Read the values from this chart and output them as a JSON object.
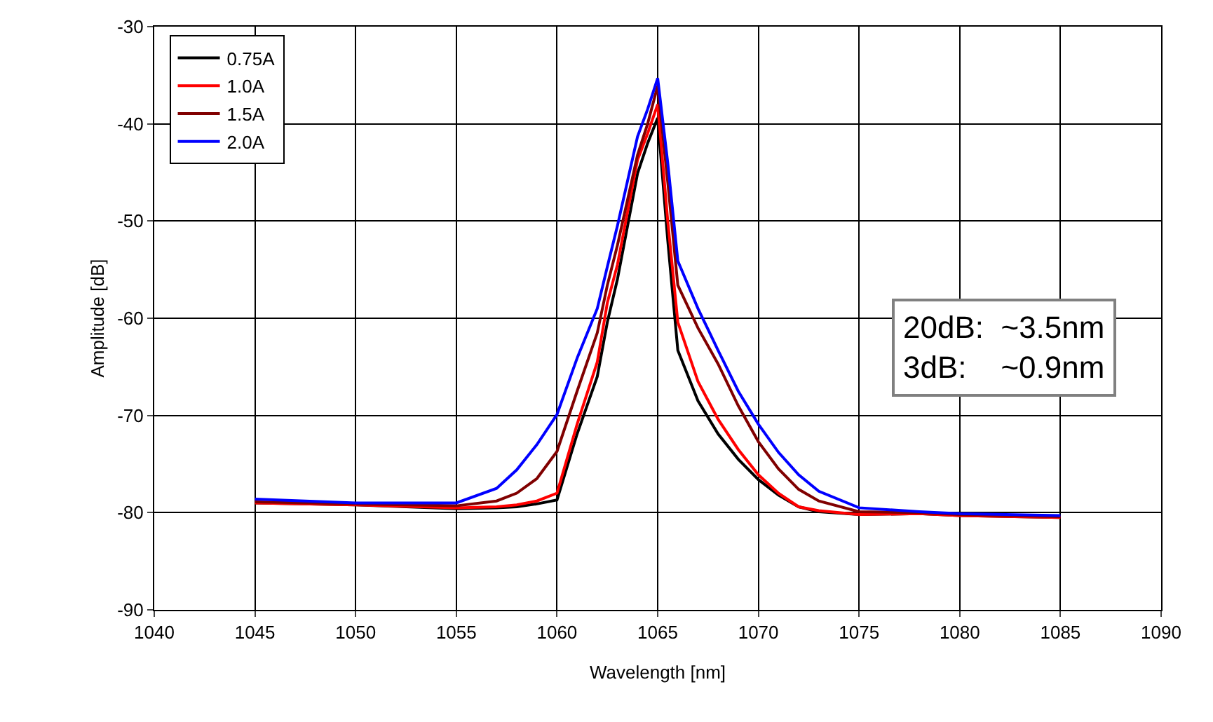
{
  "chart_data": {
    "type": "line",
    "xlabel": "Wavelength [nm]",
    "ylabel": "Amplitude [dB]",
    "x": [
      1045,
      1050,
      1055,
      1057,
      1058,
      1059,
      1060,
      1061,
      1062,
      1062.5,
      1063,
      1064,
      1064.5,
      1065,
      1065.5,
      1066,
      1067,
      1068,
      1069,
      1070,
      1071,
      1072,
      1073,
      1075,
      1078,
      1080,
      1085
    ],
    "series": [
      {
        "name": "0.75A",
        "color": "#000000",
        "values": [
          -79,
          -79.2,
          -79.6,
          -79.5,
          -79.4,
          -79.1,
          -78.7,
          -71.9,
          -66,
          -60.4,
          -56,
          -45.1,
          -42,
          -39.4,
          -52,
          -63.3,
          -68.5,
          -71.9,
          -74.5,
          -76.6,
          -78.2,
          -79.4,
          -79.9,
          -80.2,
          -80.1,
          -80.3,
          -80.5
        ]
      },
      {
        "name": "1.0A",
        "color": "#ff0000",
        "values": [
          -79,
          -79.2,
          -79.5,
          -79.4,
          -79.2,
          -78.8,
          -78,
          -70.9,
          -64.5,
          -58.4,
          -54.5,
          -43.7,
          -41,
          -38,
          -50,
          -60.4,
          -66.5,
          -70.4,
          -73.5,
          -76.1,
          -78,
          -79.4,
          -79.8,
          -80.2,
          -80.1,
          -80.3,
          -80.5
        ]
      },
      {
        "name": "1.5A",
        "color": "#800000",
        "values": [
          -78.9,
          -79.1,
          -79.3,
          -78.8,
          -78,
          -76.5,
          -73.7,
          -67.5,
          -61.5,
          -56.6,
          -52.5,
          -43.2,
          -40,
          -36.1,
          -46,
          -56.6,
          -61,
          -64.7,
          -69,
          -72.7,
          -75.5,
          -77.6,
          -78.8,
          -79.9,
          -80,
          -80.2,
          -80.4
        ]
      },
      {
        "name": "2.0A",
        "color": "#0000ff",
        "values": [
          -78.6,
          -79,
          -79,
          -77.5,
          -75.6,
          -73,
          -69.9,
          -64.1,
          -59,
          -54.7,
          -50.5,
          -41.3,
          -38.5,
          -35.3,
          -44,
          -54.1,
          -59,
          -63.3,
          -67.5,
          -70.9,
          -73.8,
          -76.1,
          -77.8,
          -79.5,
          -79.9,
          -80.1,
          -80.3
        ]
      }
    ],
    "xlim": [
      1040,
      1090
    ],
    "xticks": [
      1040,
      1045,
      1050,
      1055,
      1060,
      1065,
      1070,
      1075,
      1080,
      1085,
      1090
    ],
    "ylim": [
      -90,
      -30
    ],
    "yticks": [
      -90,
      -80,
      -70,
      -60,
      -50,
      -40,
      -30
    ],
    "grid": true,
    "legend": "top left",
    "marker": "none",
    "line_style": "solid",
    "annotations": [
      "20dB:  ~3.5nm\n3dB:    ~0.9nm"
    ]
  }
}
